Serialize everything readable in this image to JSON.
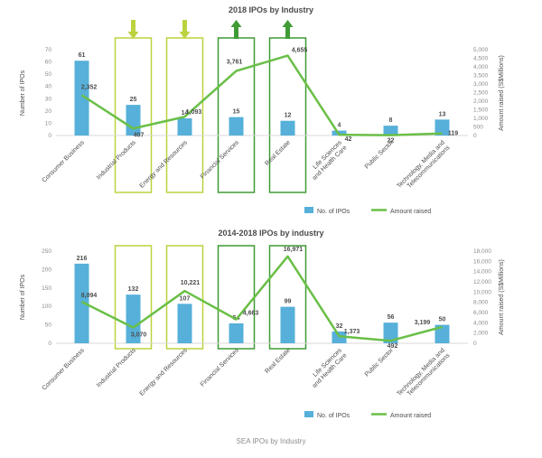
{
  "page": {
    "caption": "SEA IPOs by Industry"
  },
  "legend": {
    "bars_label": "No. of IPOs",
    "line_label": "Amount raised"
  },
  "colors": {
    "bar": "#56b0d9",
    "line": "#6abf47",
    "light_highlight": "#bdd23f",
    "dark_highlight": "#3f9c35",
    "title_text": "#4a4a4a",
    "label_text": "#4d4d4d",
    "tick_text": "#8c8c8c"
  },
  "chart_data": [
    {
      "type": "bar+line",
      "title": "2018 IPOs by Industry",
      "ylabel_left": "Number of IPOs",
      "ylabel_right": "Amount raised (S$Millions)",
      "categories": [
        "Consumer Business",
        "Industrial Products",
        "Energy and Resources",
        "Financial Services",
        "Real Estate",
        "Life Sciences and Health Care",
        "Public Sector",
        "Technology, Media and Telecommunications"
      ],
      "series": [
        {
          "name": "No. of IPOs",
          "type": "bar",
          "axis": "left",
          "values": [
            61,
            25,
            14,
            15,
            12,
            4,
            8,
            13
          ]
        },
        {
          "name": "Amount raised",
          "type": "line",
          "axis": "right",
          "values": [
            2352,
            407,
            1093,
            3761,
            4655,
            42,
            22,
            119
          ]
        }
      ],
      "value_labels": {
        "bar": [
          "61",
          "25",
          "14",
          "15",
          "12",
          "4",
          "8",
          "13"
        ],
        "line": [
          "2,352",
          "407",
          "1,093",
          "3,761",
          "4,655",
          "42",
          "22",
          "119"
        ]
      },
      "ylim_left": [
        0,
        70
      ],
      "ytick_left": [
        0,
        10,
        20,
        30,
        40,
        50,
        60,
        70
      ],
      "ylim_right": [
        0,
        5000
      ],
      "ytick_right": [
        0,
        500,
        1000,
        1500,
        2000,
        2500,
        3000,
        3500,
        4000,
        4500,
        5000
      ],
      "grid": false,
      "legend_position": "bottom-right",
      "highlights": [
        {
          "category_index": 1,
          "style": "light",
          "arrow": "down"
        },
        {
          "category_index": 2,
          "style": "light",
          "arrow": "down"
        },
        {
          "category_index": 3,
          "style": "dark",
          "arrow": "up"
        },
        {
          "category_index": 4,
          "style": "dark",
          "arrow": "up"
        }
      ]
    },
    {
      "type": "bar+line",
      "title": "2014-2018 IPOs by industry",
      "ylabel_left": "Number of IPOs",
      "ylabel_right": "Amount raised (S$Millions)",
      "categories": [
        "Consumer Business",
        "Industrial Products",
        "Energy and Resources",
        "Financial Services",
        "Real Estate",
        "Life Sciences and Health Care",
        "Public Sector",
        "Technology, Media and Telecommunications"
      ],
      "series": [
        {
          "name": "No. of IPOs",
          "type": "bar",
          "axis": "left",
          "values": [
            216,
            132,
            107,
            54,
            99,
            32,
            56,
            50
          ]
        },
        {
          "name": "Amount raised",
          "type": "line",
          "axis": "right",
          "values": [
            8094,
            3070,
            10221,
            4663,
            16971,
            1373,
            492,
            3199
          ]
        }
      ],
      "value_labels": {
        "bar": [
          "216",
          "132",
          "107",
          "54",
          "99",
          "32",
          "56",
          "50"
        ],
        "line": [
          "8,094",
          "3,070",
          "10,221",
          "4,663",
          "16,971",
          "1,373",
          "492",
          "3,199"
        ]
      },
      "ylim_left": [
        0,
        250
      ],
      "ytick_left": [
        0,
        50,
        100,
        150,
        200,
        250
      ],
      "ylim_right": [
        0,
        18000
      ],
      "ytick_right": [
        0,
        2000,
        4000,
        6000,
        8000,
        10000,
        12000,
        14000,
        16000,
        18000
      ],
      "grid": false,
      "legend_position": "bottom-right",
      "highlights": [
        {
          "category_index": 1,
          "style": "light",
          "arrow": null
        },
        {
          "category_index": 2,
          "style": "light",
          "arrow": null
        },
        {
          "category_index": 3,
          "style": "dark",
          "arrow": null
        },
        {
          "category_index": 4,
          "style": "dark",
          "arrow": null
        }
      ]
    }
  ]
}
